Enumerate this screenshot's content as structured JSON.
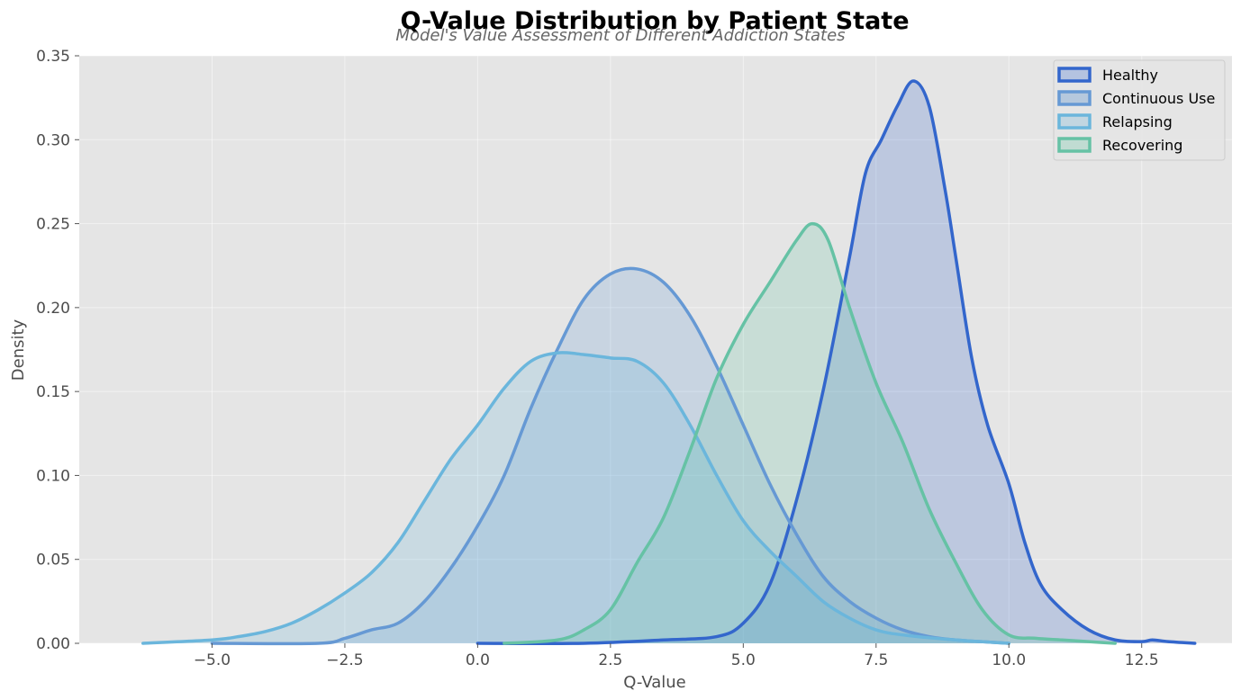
{
  "chart_data": {
    "type": "area",
    "title": "Q-Value Distribution by Patient State",
    "subtitle": "Model's Value Assessment of Different Addiction States",
    "xlabel": "Q-Value",
    "ylabel": "Density",
    "xlim": [
      -7.5,
      14.2
    ],
    "ylim": [
      0,
      0.35
    ],
    "xticks": [
      -5.0,
      -2.5,
      0.0,
      2.5,
      5.0,
      7.5,
      10.0,
      12.5
    ],
    "xtick_labels": [
      "−5.0",
      "−2.5",
      "0.0",
      "2.5",
      "5.0",
      "7.5",
      "10.0",
      "12.5"
    ],
    "yticks": [
      0.0,
      0.05,
      0.1,
      0.15,
      0.2,
      0.25,
      0.3,
      0.35
    ],
    "ytick_labels": [
      "0.00",
      "0.05",
      "0.10",
      "0.15",
      "0.20",
      "0.25",
      "0.30",
      "0.35"
    ],
    "grid": true,
    "legend_position": "top-right",
    "background": "#e5e5e5",
    "series": [
      {
        "name": "Healthy",
        "color": "#3366cc",
        "fill": "#b4c3e0",
        "points": [
          [
            0.0,
            0.0
          ],
          [
            2.0,
            0.0
          ],
          [
            3.5,
            0.002
          ],
          [
            4.5,
            0.004
          ],
          [
            5.0,
            0.012
          ],
          [
            5.5,
            0.035
          ],
          [
            6.0,
            0.085
          ],
          [
            6.5,
            0.15
          ],
          [
            7.0,
            0.23
          ],
          [
            7.3,
            0.28
          ],
          [
            7.6,
            0.3
          ],
          [
            7.9,
            0.32
          ],
          [
            8.2,
            0.335
          ],
          [
            8.5,
            0.32
          ],
          [
            8.8,
            0.27
          ],
          [
            9.0,
            0.23
          ],
          [
            9.3,
            0.17
          ],
          [
            9.6,
            0.13
          ],
          [
            10.0,
            0.095
          ],
          [
            10.3,
            0.06
          ],
          [
            10.6,
            0.035
          ],
          [
            11.0,
            0.02
          ],
          [
            11.5,
            0.008
          ],
          [
            12.0,
            0.002
          ],
          [
            12.5,
            0.001
          ],
          [
            12.7,
            0.002
          ],
          [
            13.0,
            0.001
          ],
          [
            13.5,
            0.0
          ]
        ]
      },
      {
        "name": "Continuous Use",
        "color": "#6699d4",
        "fill": "#b5c8dd",
        "points": [
          [
            -5.0,
            0.0
          ],
          [
            -3.0,
            0.0
          ],
          [
            -2.5,
            0.003
          ],
          [
            -2.0,
            0.008
          ],
          [
            -1.5,
            0.012
          ],
          [
            -1.0,
            0.025
          ],
          [
            -0.5,
            0.045
          ],
          [
            0.0,
            0.07
          ],
          [
            0.5,
            0.1
          ],
          [
            1.0,
            0.14
          ],
          [
            1.5,
            0.175
          ],
          [
            2.0,
            0.205
          ],
          [
            2.5,
            0.22
          ],
          [
            3.0,
            0.223
          ],
          [
            3.5,
            0.215
          ],
          [
            4.0,
            0.195
          ],
          [
            4.5,
            0.165
          ],
          [
            5.0,
            0.13
          ],
          [
            5.5,
            0.095
          ],
          [
            6.0,
            0.065
          ],
          [
            6.5,
            0.04
          ],
          [
            7.0,
            0.025
          ],
          [
            7.5,
            0.015
          ],
          [
            8.0,
            0.008
          ],
          [
            8.5,
            0.004
          ],
          [
            9.0,
            0.002
          ],
          [
            10.0,
            0.0
          ]
        ]
      },
      {
        "name": "Relapsing",
        "color": "#6bb6dc",
        "fill": "#c2d6e1",
        "points": [
          [
            -6.3,
            0.0
          ],
          [
            -5.0,
            0.002
          ],
          [
            -4.5,
            0.004
          ],
          [
            -4.0,
            0.007
          ],
          [
            -3.5,
            0.012
          ],
          [
            -3.0,
            0.02
          ],
          [
            -2.5,
            0.03
          ],
          [
            -2.0,
            0.042
          ],
          [
            -1.5,
            0.06
          ],
          [
            -1.0,
            0.085
          ],
          [
            -0.5,
            0.11
          ],
          [
            0.0,
            0.13
          ],
          [
            0.5,
            0.152
          ],
          [
            1.0,
            0.168
          ],
          [
            1.5,
            0.173
          ],
          [
            2.0,
            0.172
          ],
          [
            2.5,
            0.17
          ],
          [
            3.0,
            0.168
          ],
          [
            3.5,
            0.155
          ],
          [
            4.0,
            0.13
          ],
          [
            4.5,
            0.1
          ],
          [
            5.0,
            0.073
          ],
          [
            5.5,
            0.055
          ],
          [
            6.0,
            0.04
          ],
          [
            6.5,
            0.025
          ],
          [
            7.0,
            0.015
          ],
          [
            7.5,
            0.008
          ],
          [
            8.0,
            0.005
          ],
          [
            9.0,
            0.002
          ],
          [
            10.0,
            0.0
          ]
        ]
      },
      {
        "name": "Recovering",
        "color": "#66c2a5",
        "fill": "#c0dcd2",
        "points": [
          [
            0.5,
            0.0
          ],
          [
            1.5,
            0.002
          ],
          [
            2.0,
            0.008
          ],
          [
            2.5,
            0.02
          ],
          [
            3.0,
            0.048
          ],
          [
            3.5,
            0.075
          ],
          [
            4.0,
            0.115
          ],
          [
            4.5,
            0.158
          ],
          [
            5.0,
            0.19
          ],
          [
            5.5,
            0.215
          ],
          [
            6.0,
            0.24
          ],
          [
            6.3,
            0.25
          ],
          [
            6.6,
            0.24
          ],
          [
            7.0,
            0.2
          ],
          [
            7.5,
            0.155
          ],
          [
            8.0,
            0.12
          ],
          [
            8.5,
            0.08
          ],
          [
            9.0,
            0.048
          ],
          [
            9.5,
            0.02
          ],
          [
            10.0,
            0.005
          ],
          [
            10.5,
            0.003
          ],
          [
            11.0,
            0.002
          ],
          [
            11.5,
            0.001
          ],
          [
            12.0,
            0.0
          ]
        ]
      }
    ]
  }
}
